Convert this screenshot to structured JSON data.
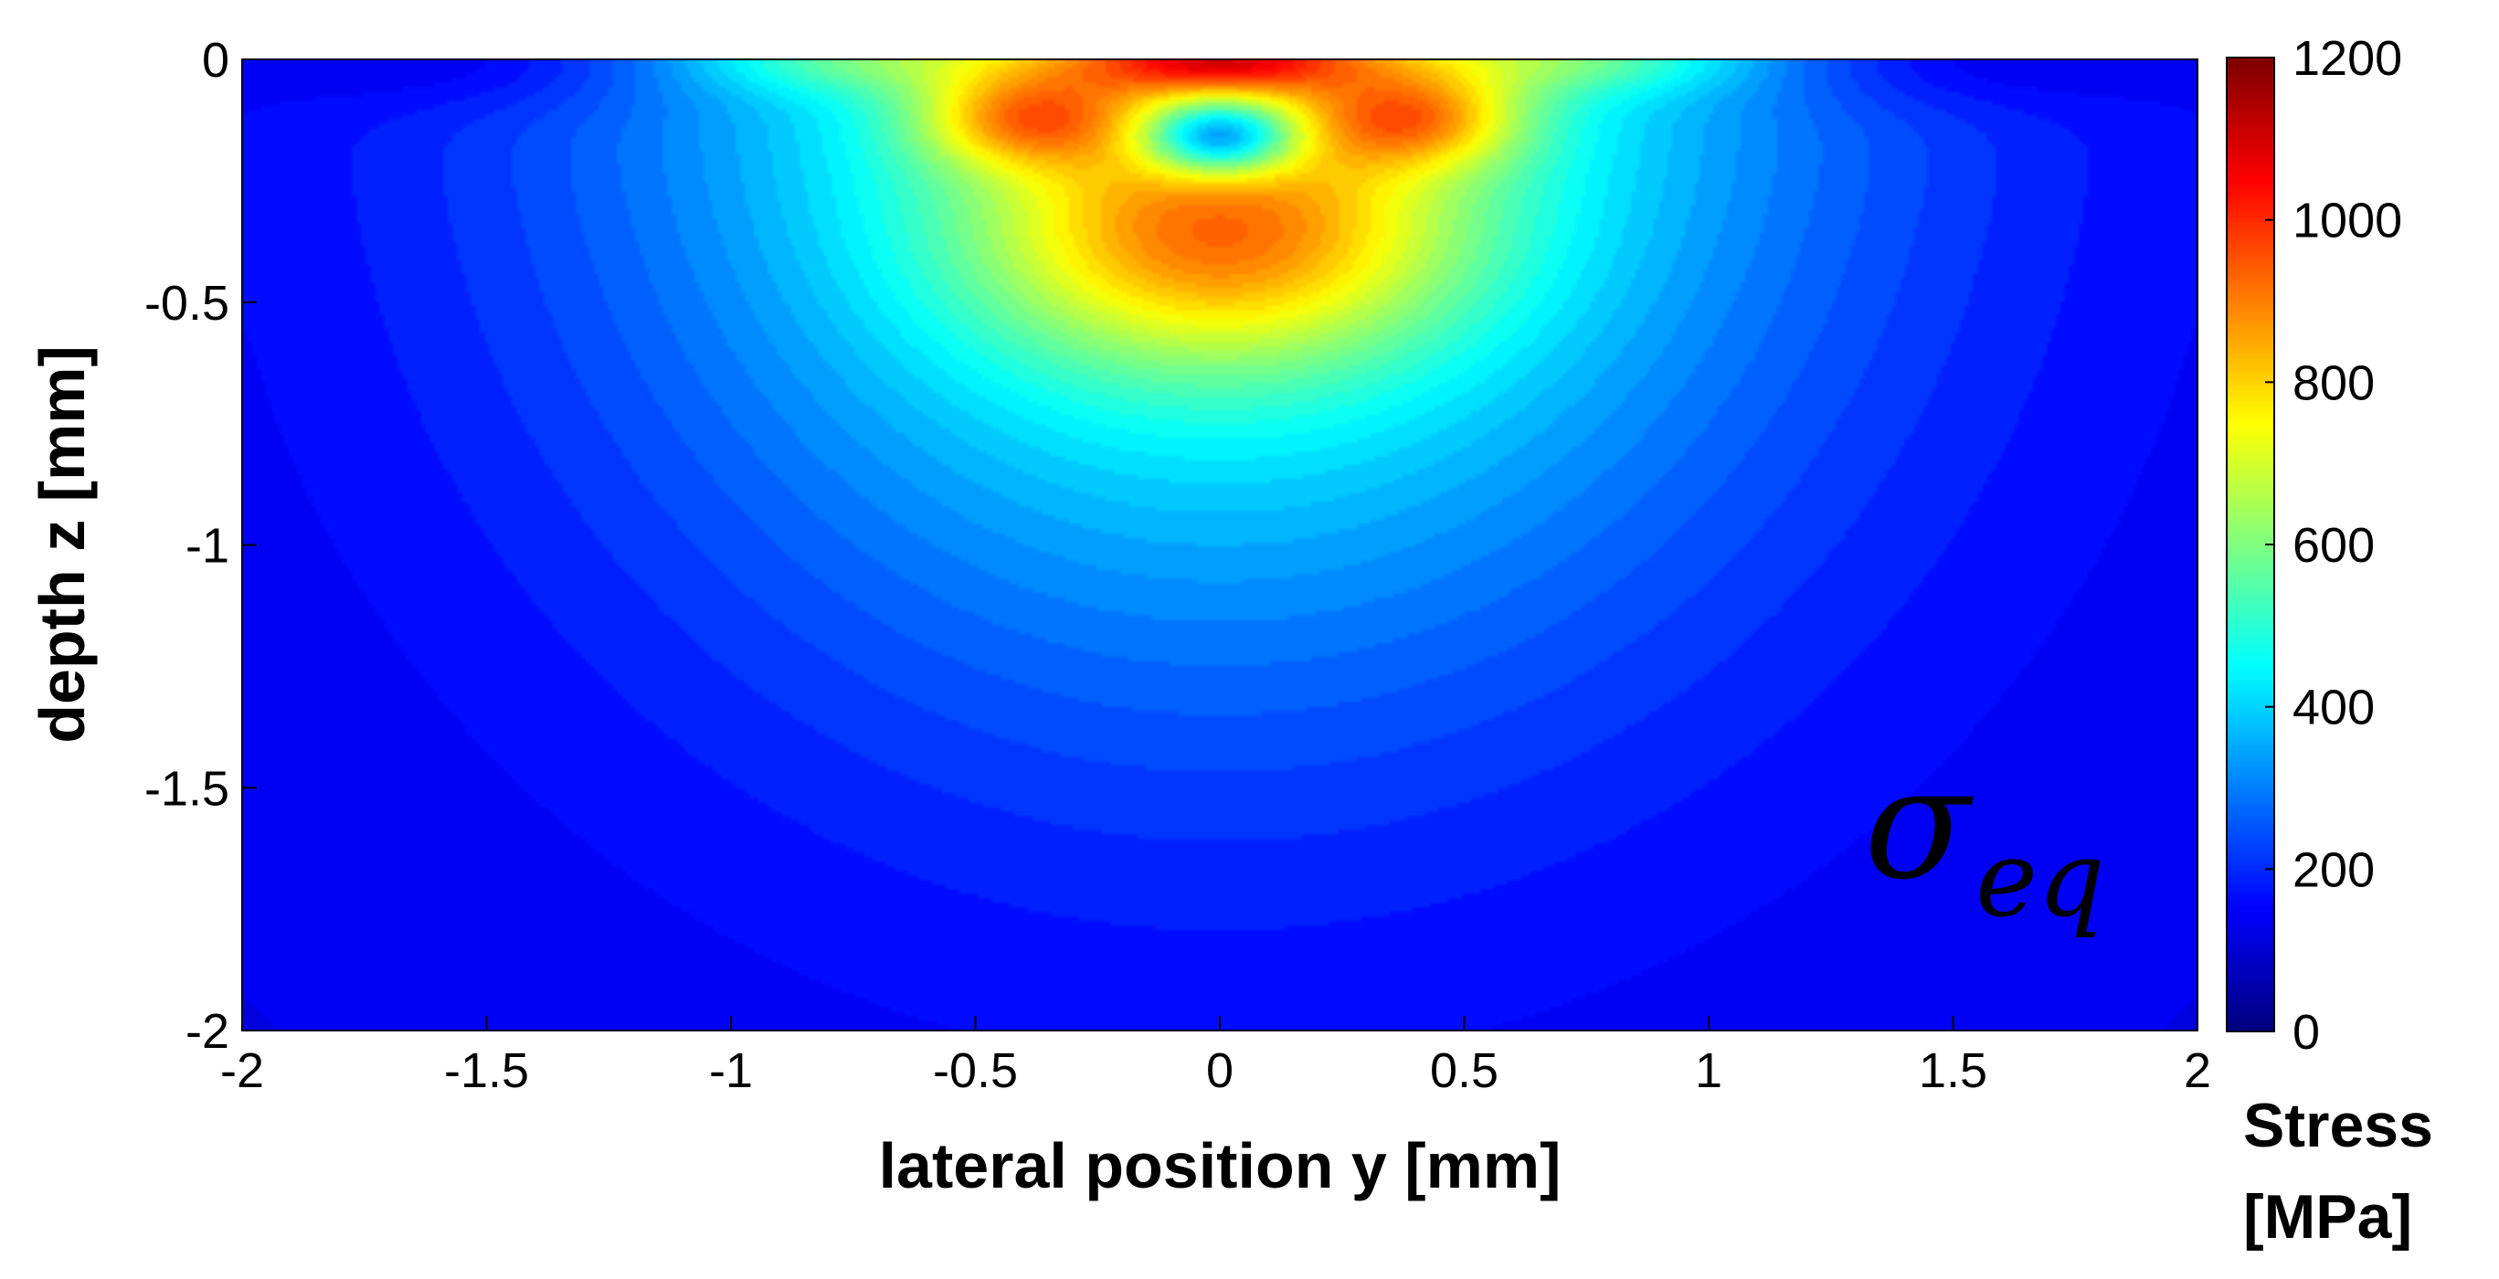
{
  "chart_data": {
    "type": "heatmap",
    "title": "",
    "xlabel": "lateral position y [mm]",
    "ylabel": "depth z [mm]",
    "xlim": [
      -2,
      2
    ],
    "ylim": [
      -2,
      0
    ],
    "x_ticks": [
      "-2",
      "-1.5",
      "-1",
      "-0.5",
      "0",
      "0.5",
      "1",
      "1.5",
      "2"
    ],
    "y_ticks": [
      "0",
      "-0.5",
      "-1",
      "-1.5",
      "-2"
    ],
    "colorbar": {
      "label_line1": "Stress",
      "label_line2": "[MPa]",
      "range": [
        0,
        1200
      ],
      "ticks": [
        "0",
        "200",
        "400",
        "600",
        "800",
        "1000",
        "1200"
      ],
      "colormap": "jet"
    },
    "annotation": {
      "symbol": "σ",
      "subscript": "eq"
    },
    "features": [
      {
        "description": "surface peak",
        "y": 0.0,
        "z": 0.0,
        "value": 1150
      },
      {
        "description": "subsurface local minimum",
        "y": 0.0,
        "z": -0.15,
        "value": 380
      },
      {
        "description": "subsurface maximum",
        "y": 0.0,
        "z": -0.42,
        "value": 900
      },
      {
        "description": "side lobes",
        "y": -0.4,
        "z": -0.12,
        "value": 950
      },
      {
        "description": "side lobes",
        "y": 0.4,
        "z": -0.12,
        "value": 950
      },
      {
        "description": "far field",
        "y": -1.9,
        "z": -1.9,
        "value": 150
      }
    ]
  }
}
